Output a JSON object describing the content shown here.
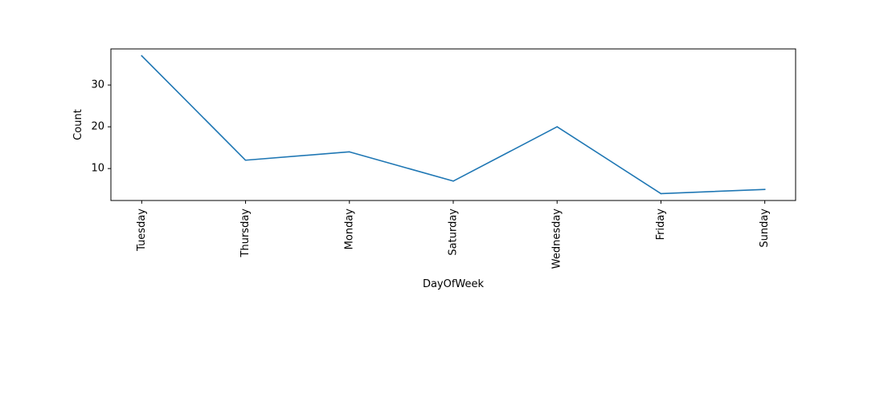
{
  "chart_data": {
    "type": "line",
    "title": "",
    "xlabel": "DayOfWeek",
    "ylabel": "Count",
    "categories": [
      "Tuesday",
      "Thursday",
      "Monday",
      "Saturday",
      "Wednesday",
      "Friday",
      "Sunday"
    ],
    "series": [
      {
        "values": [
          37,
          12,
          14,
          7,
          20,
          4,
          5
        ],
        "color": "#1f77b4"
      }
    ],
    "ylim": [
      2.35,
      38.65
    ],
    "yticks": [
      10,
      20,
      30
    ],
    "grid": false,
    "legend": false
  }
}
